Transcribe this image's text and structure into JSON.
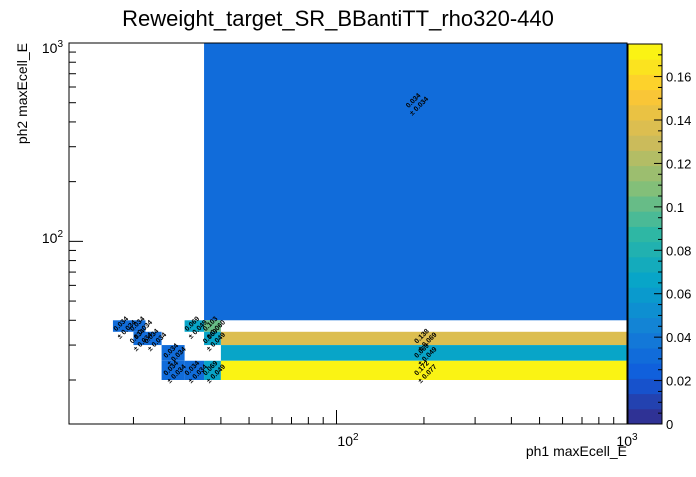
{
  "chart_data": {
    "type": "heatmap",
    "title": "Reweight_target_SR_BBantiTT_rho320-440",
    "xlabel": "ph1 maxEcell_E",
    "ylabel": "ph2 maxEcell_E",
    "x_scale": "log",
    "y_scale": "log",
    "xlim": [
      12,
      1000
    ],
    "ylim": [
      12,
      1000
    ],
    "x_tick_labels": [
      "10²",
      "10³"
    ],
    "y_tick_labels": [
      "10²",
      "10³"
    ],
    "zlim": [
      0,
      0.175
    ],
    "colorbar_tick_labels": [
      "0",
      "0.02",
      "0.04",
      "0.06",
      "0.08",
      "0.1",
      "0.12",
      "0.14",
      "0.16"
    ],
    "colors": {
      "c0": "#352a87",
      "c1": "#0f5cdd",
      "c2": "#1481d6",
      "c3": "#06a4ca",
      "c4": "#2eb7a4",
      "c5": "#87bf77",
      "c6": "#d1bb59",
      "c7": "#fec832",
      "c8": "#f9fb0e"
    },
    "cells": [
      {
        "x0": 35,
        "x1": 1000,
        "y0": 40,
        "y1": 1000,
        "value": 0.034,
        "label": "0.034",
        "error": "± 0.034"
      },
      {
        "x0": 17,
        "x1": 20,
        "y0": 35,
        "y1": 40,
        "value": 0.034,
        "label": "0.034",
        "error": "± 0.034"
      },
      {
        "x0": 20,
        "x1": 22,
        "y0": 35,
        "y1": 40,
        "value": 0.034,
        "label": "0.034",
        "error": "± 0.034"
      },
      {
        "x0": 30,
        "x1": 35,
        "y0": 35,
        "y1": 40,
        "value": 0.069,
        "label": "0.069",
        "error": "± 0.049"
      },
      {
        "x0": 35,
        "x1": 40,
        "y0": 35,
        "y1": 40,
        "value": 0.103,
        "label": "0.103",
        "error": "± 0.060"
      },
      {
        "x0": 35,
        "x1": 40,
        "y0": 30,
        "y1": 35,
        "value": 0.069,
        "label": "0.069",
        "error": "± 0.049"
      },
      {
        "x0": 40,
        "x1": 1000,
        "y0": 30,
        "y1": 35,
        "value": 0.138,
        "label": "0.138",
        "error": "± 0.069"
      },
      {
        "x0": 20,
        "x1": 22,
        "y0": 30,
        "y1": 35,
        "value": 0.034,
        "label": "0.034",
        "error": "± 0.034"
      },
      {
        "x0": 22,
        "x1": 25,
        "y0": 30,
        "y1": 35,
        "value": 0.034,
        "label": "0.034",
        "error": "± 0.034"
      },
      {
        "x0": 40,
        "x1": 1000,
        "y0": 25,
        "y1": 30,
        "value": 0.069,
        "label": "0.069",
        "error": "± 0.049"
      },
      {
        "x0": 25,
        "x1": 30,
        "y0": 25,
        "y1": 30,
        "value": 0.034,
        "label": "0.034",
        "error": "± 0.034"
      },
      {
        "x0": 25,
        "x1": 30,
        "y0": 20,
        "y1": 25,
        "value": 0.034,
        "label": "0.034",
        "error": "± 0.034"
      },
      {
        "x0": 30,
        "x1": 35,
        "y0": 20,
        "y1": 25,
        "value": 0.034,
        "label": "0.034",
        "error": "± 0.034"
      },
      {
        "x0": 35,
        "x1": 40,
        "y0": 20,
        "y1": 25,
        "value": 0.069,
        "label": "0.069",
        "error": "± 0.049"
      },
      {
        "x0": 40,
        "x1": 1000,
        "y0": 20,
        "y1": 25,
        "value": 0.172,
        "label": "0.172",
        "error": "± 0.077"
      }
    ]
  }
}
